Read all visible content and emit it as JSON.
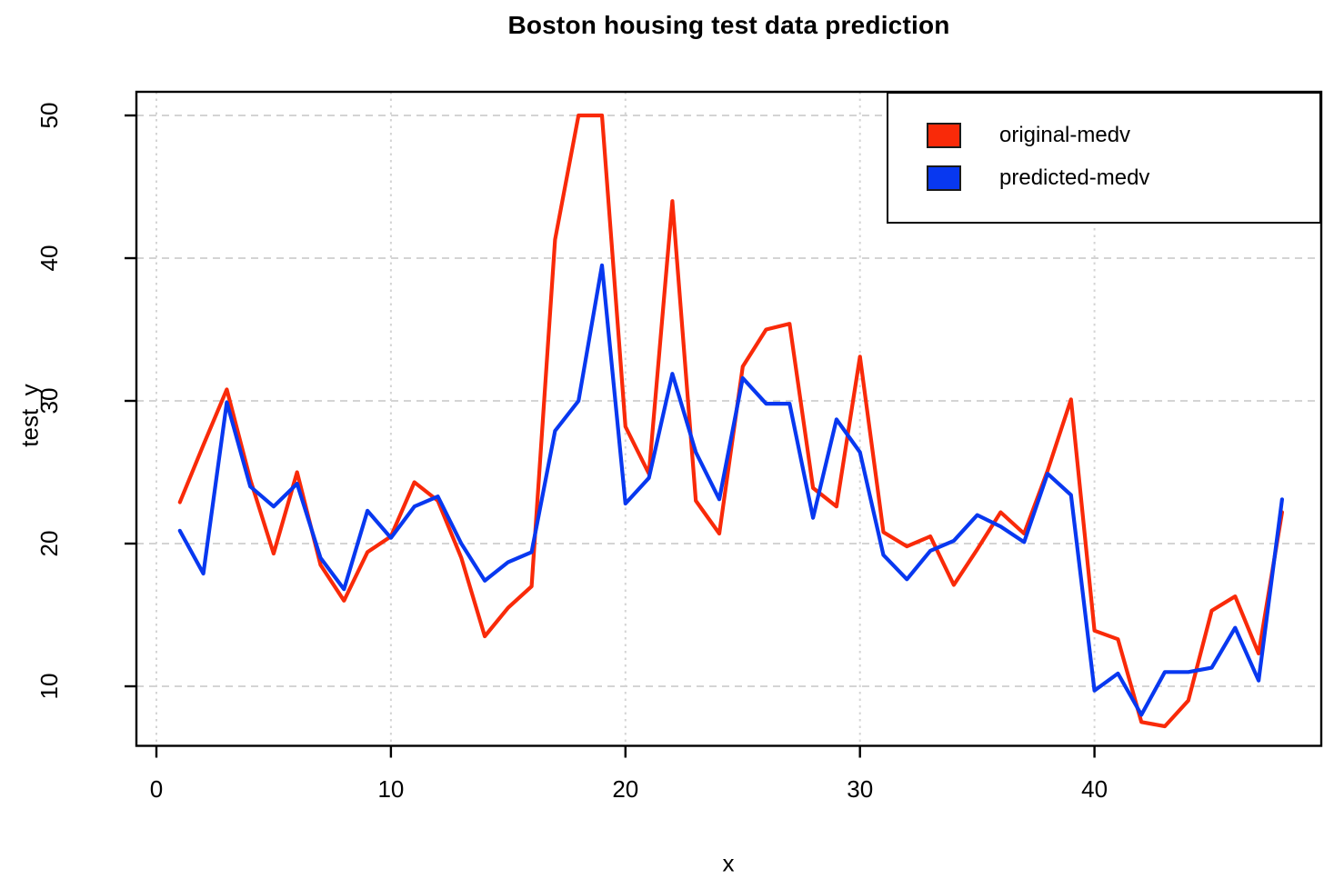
{
  "chart_data": {
    "type": "line",
    "title": "Boston housing test data prediction",
    "xlabel": "x",
    "ylabel": "test_y",
    "x": [
      1,
      2,
      3,
      4,
      5,
      6,
      7,
      8,
      9,
      10,
      11,
      12,
      13,
      14,
      15,
      16,
      17,
      18,
      19,
      20,
      21,
      22,
      23,
      24,
      25,
      26,
      27,
      28,
      29,
      30,
      31,
      32,
      33,
      34,
      35,
      36,
      37,
      38,
      39,
      40,
      41,
      42,
      43,
      44,
      45,
      46,
      47,
      48
    ],
    "series": [
      {
        "name": "original-medv",
        "color": "#f92a09",
        "values": [
          22.9,
          26.9,
          30.8,
          24.5,
          19.3,
          25.0,
          18.5,
          16.0,
          19.4,
          20.5,
          24.3,
          23.0,
          19.0,
          13.5,
          15.5,
          17.0,
          41.3,
          50.0,
          50.0,
          28.2,
          24.9,
          44.0,
          23.0,
          20.7,
          32.4,
          35.0,
          35.4,
          23.9,
          22.6,
          33.1,
          20.8,
          19.8,
          20.5,
          17.1,
          19.6,
          22.2,
          20.7,
          25.1,
          30.1,
          13.9,
          13.3,
          7.5,
          7.2,
          9.0,
          15.3,
          16.3,
          12.3,
          22.2
        ]
      },
      {
        "name": "predicted-medv",
        "color": "#0838f0",
        "values": [
          20.9,
          17.9,
          29.9,
          24.0,
          22.6,
          24.2,
          19.0,
          16.8,
          22.3,
          20.4,
          22.6,
          23.3,
          20.0,
          17.4,
          18.7,
          19.4,
          27.9,
          30.0,
          39.5,
          22.8,
          24.6,
          31.9,
          26.4,
          23.1,
          31.6,
          29.8,
          29.8,
          21.8,
          28.7,
          26.4,
          19.2,
          17.5,
          19.5,
          20.2,
          22.0,
          21.2,
          20.1,
          24.9,
          23.4,
          9.7,
          10.9,
          8.0,
          11.0,
          11.0,
          11.3,
          14.1,
          10.4,
          23.1
        ]
      }
    ],
    "x_ticks": [
      0,
      10,
      20,
      30,
      40
    ],
    "y_ticks": [
      10,
      20,
      30,
      40,
      50
    ],
    "xlim": [
      -0.9,
      49.9
    ],
    "ylim": [
      5.5,
      51.7
    ],
    "grid": true,
    "grid_color": "#d4d4d4",
    "axis_color": "#000000",
    "legend_position": "top-right"
  },
  "legend": {
    "items": [
      {
        "label": "original-medv",
        "color": "#f92a09"
      },
      {
        "label": "predicted-medv",
        "color": "#0838f0"
      }
    ]
  }
}
